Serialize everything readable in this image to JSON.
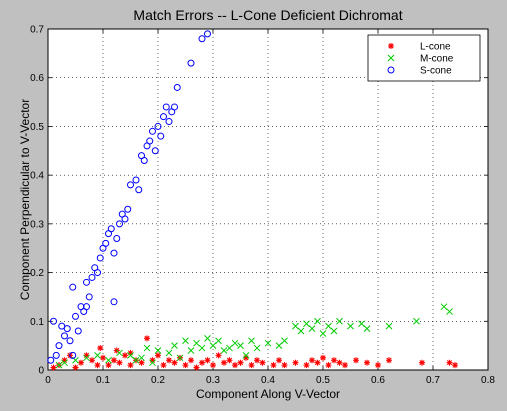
{
  "chart_data": {
    "type": "scatter",
    "title": "Match Errors -- L-Cone Deficient Dichromat",
    "xlabel": "Component Along V-Vector",
    "ylabel": "Component Perpendicular to V-Vector",
    "xlim": [
      0,
      0.8
    ],
    "ylim": [
      0,
      0.7
    ],
    "xticks": [
      0,
      0.1,
      0.2,
      0.3,
      0.4,
      0.5,
      0.6,
      0.7,
      0.8
    ],
    "yticks": [
      0,
      0.1,
      0.2,
      0.3,
      0.4,
      0.5,
      0.6,
      0.7
    ],
    "xtick_labels": [
      "0",
      "0.1",
      "0.2",
      "0.3",
      "0.4",
      "0.5",
      "0.6",
      "0.7",
      "0.8"
    ],
    "ytick_labels": [
      "0",
      "0.1",
      "0.2",
      "0.3",
      "0.4",
      "0.5",
      "0.6",
      "0.7"
    ],
    "grid": true,
    "legend_position": "top-right",
    "series": [
      {
        "name": "L-cone",
        "marker": "asterisk",
        "color": "#ff0000",
        "points": [
          [
            0.01,
            0.005
          ],
          [
            0.02,
            0.01
          ],
          [
            0.03,
            0.02
          ],
          [
            0.04,
            0.03
          ],
          [
            0.05,
            0.005
          ],
          [
            0.06,
            0.015
          ],
          [
            0.07,
            0.03
          ],
          [
            0.08,
            0.02
          ],
          [
            0.09,
            0.01
          ],
          [
            0.1,
            0.025
          ],
          [
            0.11,
            0.01
          ],
          [
            0.12,
            0.02
          ],
          [
            0.13,
            0.015
          ],
          [
            0.14,
            0.03
          ],
          [
            0.15,
            0.01
          ],
          [
            0.16,
            0.02
          ],
          [
            0.17,
            0.015
          ],
          [
            0.18,
            0.065
          ],
          [
            0.19,
            0.02
          ],
          [
            0.2,
            0.03
          ],
          [
            0.21,
            0.01
          ],
          [
            0.22,
            0.02
          ],
          [
            0.23,
            0.015
          ],
          [
            0.24,
            0.025
          ],
          [
            0.25,
            0.01
          ],
          [
            0.26,
            0.02
          ],
          [
            0.27,
            0.005
          ],
          [
            0.28,
            0.015
          ],
          [
            0.29,
            0.02
          ],
          [
            0.3,
            0.01
          ],
          [
            0.31,
            0.03
          ],
          [
            0.32,
            0.015
          ],
          [
            0.33,
            0.02
          ],
          [
            0.34,
            0.01
          ],
          [
            0.35,
            0.015
          ],
          [
            0.36,
            0.025
          ],
          [
            0.37,
            0.01
          ],
          [
            0.38,
            0.02
          ],
          [
            0.39,
            0.015
          ],
          [
            0.41,
            0.01
          ],
          [
            0.42,
            0.02
          ],
          [
            0.43,
            0.01
          ],
          [
            0.45,
            0.015
          ],
          [
            0.47,
            0.01
          ],
          [
            0.48,
            0.02
          ],
          [
            0.49,
            0.015
          ],
          [
            0.5,
            0.025
          ],
          [
            0.51,
            0.01
          ],
          [
            0.52,
            0.02
          ],
          [
            0.53,
            0.015
          ],
          [
            0.54,
            0.01
          ],
          [
            0.56,
            0.02
          ],
          [
            0.58,
            0.015
          ],
          [
            0.6,
            0.01
          ],
          [
            0.62,
            0.02
          ],
          [
            0.68,
            0.015
          ],
          [
            0.73,
            0.015
          ],
          [
            0.74,
            0.01
          ],
          [
            0.15,
            0.035
          ],
          [
            0.125,
            0.04
          ],
          [
            0.095,
            0.045
          ]
        ]
      },
      {
        "name": "M-cone",
        "marker": "cross",
        "color": "#00cc00",
        "points": [
          [
            0.02,
            0.01
          ],
          [
            0.03,
            0.015
          ],
          [
            0.05,
            0.02
          ],
          [
            0.07,
            0.025
          ],
          [
            0.09,
            0.03
          ],
          [
            0.11,
            0.02
          ],
          [
            0.13,
            0.035
          ],
          [
            0.15,
            0.03
          ],
          [
            0.17,
            0.025
          ],
          [
            0.18,
            0.045
          ],
          [
            0.2,
            0.04
          ],
          [
            0.22,
            0.035
          ],
          [
            0.23,
            0.05
          ],
          [
            0.25,
            0.06
          ],
          [
            0.26,
            0.04
          ],
          [
            0.27,
            0.055
          ],
          [
            0.28,
            0.045
          ],
          [
            0.29,
            0.065
          ],
          [
            0.3,
            0.05
          ],
          [
            0.31,
            0.06
          ],
          [
            0.32,
            0.04
          ],
          [
            0.33,
            0.045
          ],
          [
            0.34,
            0.055
          ],
          [
            0.35,
            0.05
          ],
          [
            0.37,
            0.06
          ],
          [
            0.38,
            0.045
          ],
          [
            0.4,
            0.055
          ],
          [
            0.42,
            0.05
          ],
          [
            0.43,
            0.06
          ],
          [
            0.45,
            0.09
          ],
          [
            0.46,
            0.08
          ],
          [
            0.47,
            0.095
          ],
          [
            0.48,
            0.085
          ],
          [
            0.49,
            0.1
          ],
          [
            0.5,
            0.075
          ],
          [
            0.51,
            0.09
          ],
          [
            0.52,
            0.08
          ],
          [
            0.53,
            0.1
          ],
          [
            0.55,
            0.09
          ],
          [
            0.57,
            0.095
          ],
          [
            0.58,
            0.085
          ],
          [
            0.62,
            0.09
          ],
          [
            0.67,
            0.1
          ],
          [
            0.72,
            0.13
          ],
          [
            0.73,
            0.12
          ],
          [
            0.16,
            0.02
          ],
          [
            0.19,
            0.015
          ],
          [
            0.24,
            0.025
          ],
          [
            0.36,
            0.03
          ]
        ]
      },
      {
        "name": "S-cone",
        "marker": "circle",
        "color": "#0000ff",
        "points": [
          [
            0.005,
            0.02
          ],
          [
            0.01,
            0.1
          ],
          [
            0.015,
            0.03
          ],
          [
            0.02,
            0.05
          ],
          [
            0.025,
            0.09
          ],
          [
            0.03,
            0.07
          ],
          [
            0.035,
            0.085
          ],
          [
            0.04,
            0.06
          ],
          [
            0.045,
            0.17
          ],
          [
            0.05,
            0.11
          ],
          [
            0.055,
            0.08
          ],
          [
            0.06,
            0.13
          ],
          [
            0.065,
            0.12
          ],
          [
            0.07,
            0.18
          ],
          [
            0.075,
            0.15
          ],
          [
            0.08,
            0.19
          ],
          [
            0.085,
            0.21
          ],
          [
            0.09,
            0.2
          ],
          [
            0.095,
            0.23
          ],
          [
            0.1,
            0.25
          ],
          [
            0.105,
            0.26
          ],
          [
            0.11,
            0.28
          ],
          [
            0.115,
            0.29
          ],
          [
            0.12,
            0.24
          ],
          [
            0.125,
            0.27
          ],
          [
            0.13,
            0.3
          ],
          [
            0.135,
            0.32
          ],
          [
            0.14,
            0.31
          ],
          [
            0.145,
            0.33
          ],
          [
            0.15,
            0.38
          ],
          [
            0.16,
            0.39
          ],
          [
            0.165,
            0.37
          ],
          [
            0.17,
            0.44
          ],
          [
            0.175,
            0.43
          ],
          [
            0.18,
            0.46
          ],
          [
            0.185,
            0.47
          ],
          [
            0.19,
            0.49
          ],
          [
            0.195,
            0.45
          ],
          [
            0.2,
            0.5
          ],
          [
            0.205,
            0.48
          ],
          [
            0.21,
            0.52
          ],
          [
            0.215,
            0.54
          ],
          [
            0.22,
            0.51
          ],
          [
            0.225,
            0.53
          ],
          [
            0.23,
            0.54
          ],
          [
            0.235,
            0.58
          ],
          [
            0.26,
            0.63
          ],
          [
            0.28,
            0.68
          ],
          [
            0.29,
            0.69
          ],
          [
            0.12,
            0.14
          ],
          [
            0.045,
            0.03
          ],
          [
            0.07,
            0.13
          ]
        ]
      }
    ]
  }
}
